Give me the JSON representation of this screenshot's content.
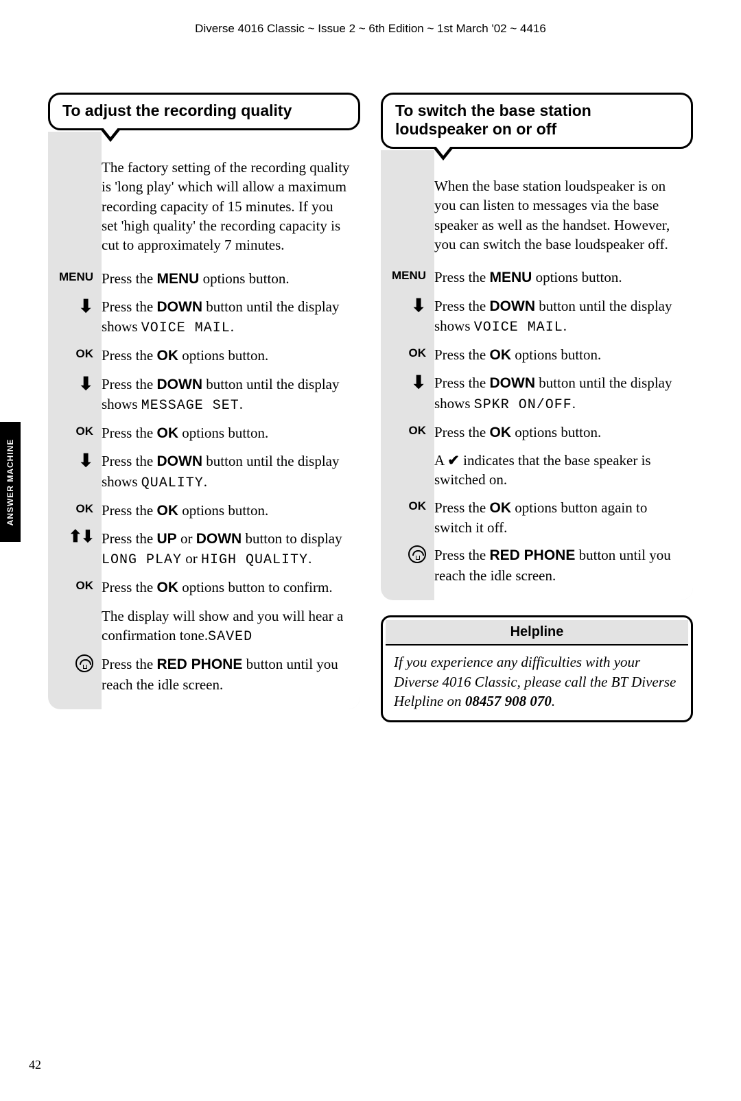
{
  "header": "Diverse 4016 Classic ~ Issue 2 ~ 6th Edition ~ 1st March '02 ~ 4416",
  "side_tab": "ANSWER MACHINE",
  "page_num": "42",
  "left": {
    "title": "To adjust the recording quality",
    "intro": "The factory setting of the recording quality is 'long play' which will allow a maximum recording capacity of 15 minutes. If you set 'high quality' the recording capacity is cut to approximately 7 minutes.",
    "steps": [
      {
        "label": "MENU",
        "icon": "",
        "pre": "Press the ",
        "bold": "MENU",
        "post": " options button."
      },
      {
        "label": "",
        "icon": "down",
        "pre": "Press the ",
        "bold": "DOWN",
        "post": " button until the display shows ",
        "lcd": "VOICE MAIL",
        "tail": "."
      },
      {
        "label": "OK",
        "icon": "",
        "pre": "Press the ",
        "bold": "OK",
        "post": " options button."
      },
      {
        "label": "",
        "icon": "down",
        "pre": "Press the ",
        "bold": "DOWN",
        "post": " button until the display shows ",
        "lcd": "MESSAGE SET",
        "tail": "."
      },
      {
        "label": "OK",
        "icon": "",
        "pre": "Press the ",
        "bold": "OK",
        "post": " options button."
      },
      {
        "label": "",
        "icon": "down",
        "pre": "Press the ",
        "bold": "DOWN",
        "post": " button until the display shows ",
        "lcd": "QUALITY",
        "tail": "."
      },
      {
        "label": "OK",
        "icon": "",
        "pre": "Press the ",
        "bold": "OK",
        "post": " options button."
      },
      {
        "label": "",
        "icon": "updown",
        "pre": "Press the ",
        "bold": "UP",
        "mid": " or ",
        "bold2": "DOWN",
        "post": " button to display ",
        "lcd": "LONG PLAY",
        "mid2": " or ",
        "lcd2": "HIGH QUALITY",
        "tail": "."
      },
      {
        "label": "OK",
        "icon": "",
        "pre": "Press the ",
        "bold": "OK",
        "post": " options button to confirm."
      },
      {
        "label": "",
        "icon": "",
        "pre": "The display will show ",
        "lcd": "SAVED",
        "post": " and you will hear a confirmation tone."
      },
      {
        "label": "",
        "icon": "phone",
        "pre": "Press the ",
        "bold": "RED PHONE",
        "post": " button until you reach the idle screen."
      }
    ]
  },
  "right": {
    "title": "To switch the base station loudspeaker on or off",
    "intro": "When the base station loudspeaker is on you can listen to messages via the base speaker as well as the handset. However, you can switch the base loudspeaker off.",
    "steps": [
      {
        "label": "MENU",
        "icon": "",
        "pre": "Press the ",
        "bold": "MENU",
        "post": " options button."
      },
      {
        "label": "",
        "icon": "down",
        "pre": "Press the ",
        "bold": "DOWN",
        "post": " button until the display shows ",
        "lcd": "VOICE MAIL",
        "tail": "."
      },
      {
        "label": "OK",
        "icon": "",
        "pre": "Press the ",
        "bold": "OK",
        "post": " options button."
      },
      {
        "label": "",
        "icon": "down",
        "pre": "Press the ",
        "bold": "DOWN",
        "post": " button until the display shows ",
        "lcd": "SPKR ON/OFF",
        "tail": "."
      },
      {
        "label": "OK",
        "icon": "",
        "pre": "Press the ",
        "bold": "OK",
        "post": " options button."
      },
      {
        "label": "",
        "icon": "",
        "pre": "A ",
        "check": "✔",
        "post": " indicates that the base speaker is switched on."
      },
      {
        "label": "OK",
        "icon": "",
        "pre": "Press the ",
        "bold": "OK",
        "post": " options button again to switch it off."
      },
      {
        "label": "",
        "icon": "phone",
        "pre": "Press the ",
        "bold": "RED PHONE",
        "post": " button until you reach the idle screen."
      }
    ]
  },
  "helpline": {
    "title": "Helpline",
    "body_pre": "If you experience any difficulties with your Diverse 4016 Classic, please call the BT Diverse Helpline on ",
    "phone": "08457 908 070",
    "body_post": "."
  }
}
